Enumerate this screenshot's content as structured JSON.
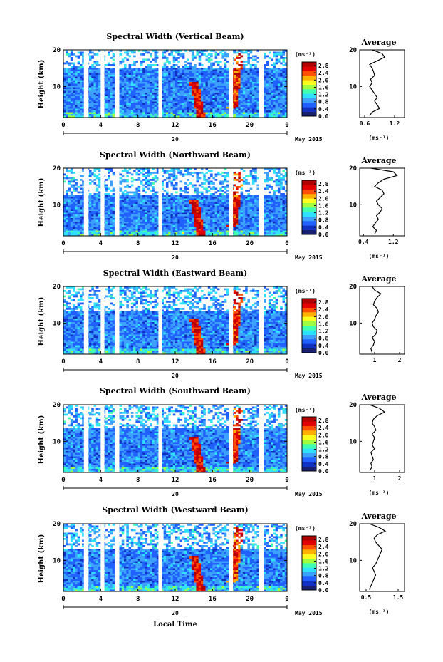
{
  "colors": {
    "colormap": [
      "#1a2070",
      "#1030c0",
      "#2060ff",
      "#3ca0ff",
      "#30e0ff",
      "#40ffb0",
      "#a0ff40",
      "#ffff20",
      "#ffb000",
      "#ff5000",
      "#e00000",
      "#b00000"
    ],
    "white_gaps": "#ffffff",
    "profile_line": "#000000"
  },
  "figure": {
    "xlabel": "Local Time",
    "date_label": "May 2015",
    "day_label": "20",
    "height_label": "Height (km)",
    "unit_label": "(ms⁻¹)",
    "avg_title": "Average",
    "avg_xlabel": "(ms⁻¹)"
  },
  "chart_data": [
    {
      "type": "heatmap",
      "title": "Spectral Width (Vertical Beam)",
      "xlabel": "Local Time",
      "ylabel": "Height (km)",
      "x_ticks": [
        "0",
        "4",
        "8",
        "12",
        "16",
        "20",
        "0"
      ],
      "xlim": [
        0,
        24
      ],
      "y_ticks": [
        "20",
        "10"
      ],
      "ylim": [
        1.5,
        20
      ],
      "colorbar_ticks": [
        "2.8",
        "2.4",
        "2.0",
        "1.6",
        "1.2",
        "0.8",
        "0.4",
        "0.0"
      ],
      "colorbar_range": [
        0,
        3.0
      ],
      "data_gaps_hours": [
        [
          2.2,
          2.7
        ],
        [
          4.0,
          4.4
        ],
        [
          5.5,
          6.0
        ],
        [
          10.2,
          10.6
        ],
        [
          17.8,
          18.2
        ],
        [
          21.0,
          21.5
        ]
      ],
      "features": [
        {
          "name": "clear-air echo limit (km)",
          "value": 15
        },
        {
          "name": "high width event 1 (LT)",
          "value": 14.5
        },
        {
          "name": "high width event 2 (LT)",
          "value": 18.5
        }
      ],
      "profile": {
        "title": "Average",
        "xlabel": "(ms⁻¹)",
        "x_ticks": [
          "0.6",
          "1.2"
        ],
        "xlim": [
          0.5,
          1.4
        ],
        "y_ticks": [
          "20",
          "10"
        ],
        "ylim": [
          1.5,
          20
        ],
        "height_km": [
          2,
          3,
          4,
          5,
          6,
          7,
          8,
          9,
          10,
          11,
          12,
          13,
          14,
          15,
          16,
          17,
          18,
          19,
          20
        ],
        "width_ms": [
          0.7,
          0.75,
          0.9,
          0.85,
          0.8,
          0.85,
          0.8,
          0.75,
          0.7,
          0.75,
          0.72,
          0.8,
          0.78,
          0.75,
          0.7,
          0.85,
          1.0,
          0.95,
          0.75
        ]
      }
    },
    {
      "type": "heatmap",
      "title": "Spectral Width (Northward Beam)",
      "xlabel": "Local Time",
      "ylabel": "Height (km)",
      "x_ticks": [
        "0",
        "4",
        "8",
        "12",
        "16",
        "20",
        "0"
      ],
      "xlim": [
        0,
        24
      ],
      "y_ticks": [
        "20",
        "10"
      ],
      "ylim": [
        1.5,
        20
      ],
      "colorbar_ticks": [
        "2.8",
        "2.4",
        "2.0",
        "1.6",
        "1.2",
        "0.8",
        "0.4",
        "0.0"
      ],
      "colorbar_range": [
        0,
        3.0
      ],
      "data_gaps_hours": [
        [
          2.2,
          2.7
        ],
        [
          4.0,
          4.4
        ],
        [
          5.5,
          6.0
        ],
        [
          10.2,
          10.6
        ],
        [
          17.8,
          18.2
        ],
        [
          21.0,
          21.5
        ]
      ],
      "features": [
        {
          "name": "clear-air echo limit (km)",
          "value": 12.5
        },
        {
          "name": "high width event 1 (LT)",
          "value": 14.5
        },
        {
          "name": "high width event 2 (LT)",
          "value": 18.5
        }
      ],
      "profile": {
        "title": "Average",
        "xlabel": "(ms⁻¹)",
        "x_ticks": [
          "0.4",
          "1.2"
        ],
        "xlim": [
          0.3,
          1.5
        ],
        "y_ticks": [
          "20",
          "10"
        ],
        "ylim": [
          1.5,
          20
        ],
        "height_km": [
          2,
          3,
          4,
          5,
          6,
          7,
          8,
          9,
          10,
          11,
          12,
          13,
          14,
          15,
          16,
          17,
          18,
          19,
          20
        ],
        "width_ms": [
          0.7,
          0.75,
          0.65,
          0.72,
          0.8,
          0.75,
          0.85,
          0.9,
          0.8,
          0.75,
          0.85,
          0.95,
          0.9,
          0.7,
          0.8,
          0.95,
          1.3,
          1.2,
          0.6
        ]
      }
    },
    {
      "type": "heatmap",
      "title": "Spectral Width (Eastward Beam)",
      "xlabel": "Local Time",
      "ylabel": "Height (km)",
      "x_ticks": [
        "0",
        "4",
        "8",
        "12",
        "16",
        "20",
        "0"
      ],
      "xlim": [
        0,
        24
      ],
      "y_ticks": [
        "20",
        "10"
      ],
      "ylim": [
        1.5,
        20
      ],
      "colorbar_ticks": [
        "2.8",
        "2.4",
        "2.0",
        "1.6",
        "1.2",
        "0.8",
        "0.4",
        "0.0"
      ],
      "colorbar_range": [
        0,
        3.0
      ],
      "data_gaps_hours": [
        [
          2.2,
          2.7
        ],
        [
          4.0,
          4.4
        ],
        [
          5.5,
          6.0
        ],
        [
          10.2,
          10.6
        ],
        [
          17.8,
          18.2
        ],
        [
          21.0,
          21.5
        ]
      ],
      "features": [
        {
          "name": "clear-air echo limit (km)",
          "value": 13
        },
        {
          "name": "high width event 1 (LT)",
          "value": 14.5
        },
        {
          "name": "high width event 2 (LT)",
          "value": 18.5
        }
      ],
      "profile": {
        "title": "Average",
        "xlabel": "",
        "x_ticks": [
          "1",
          "2"
        ],
        "xlim": [
          0.4,
          2.2
        ],
        "y_ticks": [
          "20",
          "10"
        ],
        "ylim": [
          1.5,
          20
        ],
        "height_km": [
          2,
          3,
          4,
          5,
          6,
          7,
          8,
          9,
          10,
          11,
          12,
          13,
          14,
          15,
          16,
          17,
          18,
          19,
          20
        ],
        "width_ms": [
          0.9,
          0.85,
          0.95,
          1.0,
          0.9,
          1.05,
          1.1,
          0.95,
          0.9,
          1.0,
          1.05,
          1.15,
          1.1,
          0.95,
          1.0,
          1.1,
          1.25,
          1.0,
          0.9
        ]
      }
    },
    {
      "type": "heatmap",
      "title": "Spectral Width (Southward Beam)",
      "xlabel": "Local Time",
      "ylabel": "Height (km)",
      "x_ticks": [
        "0",
        "4",
        "8",
        "12",
        "16",
        "20",
        "0"
      ],
      "xlim": [
        0,
        24
      ],
      "y_ticks": [
        "20",
        "10"
      ],
      "ylim": [
        1.5,
        20
      ],
      "colorbar_ticks": [
        "2.8",
        "2.4",
        "2.0",
        "1.6",
        "1.2",
        "0.8",
        "0.4",
        "0.0"
      ],
      "colorbar_range": [
        0,
        3.0
      ],
      "data_gaps_hours": [
        [
          2.2,
          2.7
        ],
        [
          4.0,
          4.4
        ],
        [
          5.5,
          6.0
        ],
        [
          10.2,
          10.6
        ],
        [
          17.8,
          18.2
        ],
        [
          21.0,
          21.5
        ]
      ],
      "features": [
        {
          "name": "clear-air echo limit (km)",
          "value": 13.5
        },
        {
          "name": "high width event 1 (LT)",
          "value": 14.5
        },
        {
          "name": "high width event 2 (LT)",
          "value": 18.5
        }
      ],
      "profile": {
        "title": "Average",
        "xlabel": "(ms⁻¹)",
        "x_ticks": [
          "1",
          "2"
        ],
        "xlim": [
          0.4,
          2.2
        ],
        "y_ticks": [
          "20",
          "10"
        ],
        "ylim": [
          1.5,
          20
        ],
        "height_km": [
          2,
          3,
          4,
          5,
          6,
          7,
          8,
          9,
          10,
          11,
          12,
          13,
          14,
          15,
          16,
          17,
          18,
          19,
          20
        ],
        "width_ms": [
          0.8,
          0.9,
          0.85,
          0.95,
          0.9,
          0.85,
          1.0,
          0.9,
          0.95,
          1.0,
          0.9,
          1.05,
          1.0,
          0.9,
          0.95,
          1.1,
          1.4,
          1.2,
          0.8
        ]
      }
    },
    {
      "type": "heatmap",
      "title": "Spectral Width (Westward Beam)",
      "xlabel": "Local Time",
      "ylabel": "Height (km)",
      "x_ticks": [
        "0",
        "4",
        "8",
        "12",
        "16",
        "20",
        "0"
      ],
      "xlim": [
        0,
        24
      ],
      "y_ticks": [
        "20",
        "10"
      ],
      "ylim": [
        1.5,
        20
      ],
      "colorbar_ticks": [
        "2.8",
        "2.4",
        "2.0",
        "1.6",
        "1.2",
        "0.8",
        "0.4",
        "0.0"
      ],
      "colorbar_range": [
        0,
        3.0
      ],
      "data_gaps_hours": [
        [
          2.2,
          2.7
        ],
        [
          4.0,
          4.4
        ],
        [
          5.5,
          6.0
        ],
        [
          10.2,
          10.6
        ],
        [
          17.8,
          18.2
        ],
        [
          21.0,
          21.5
        ]
      ],
      "features": [
        {
          "name": "clear-air echo limit (km)",
          "value": 13
        },
        {
          "name": "high width event 1 (LT)",
          "value": 14.5
        },
        {
          "name": "high width event 2 (LT)",
          "value": 18.5
        }
      ],
      "profile": {
        "title": "Average",
        "xlabel": "(ms⁻¹)",
        "x_ticks": [
          "0.5",
          "1.5"
        ],
        "xlim": [
          0.3,
          1.7
        ],
        "y_ticks": [
          "20",
          "10"
        ],
        "ylim": [
          1.5,
          20
        ],
        "height_km": [
          2,
          3,
          4,
          5,
          6,
          7,
          8,
          9,
          10,
          11,
          12,
          13,
          14,
          15,
          16,
          17,
          18,
          19,
          20
        ],
        "width_ms": [
          0.6,
          0.65,
          0.7,
          0.75,
          0.8,
          0.75,
          0.7,
          0.8,
          0.85,
          0.9,
          0.95,
          1.0,
          0.9,
          0.8,
          0.75,
          0.85,
          1.1,
          0.9,
          0.6
        ]
      }
    }
  ]
}
